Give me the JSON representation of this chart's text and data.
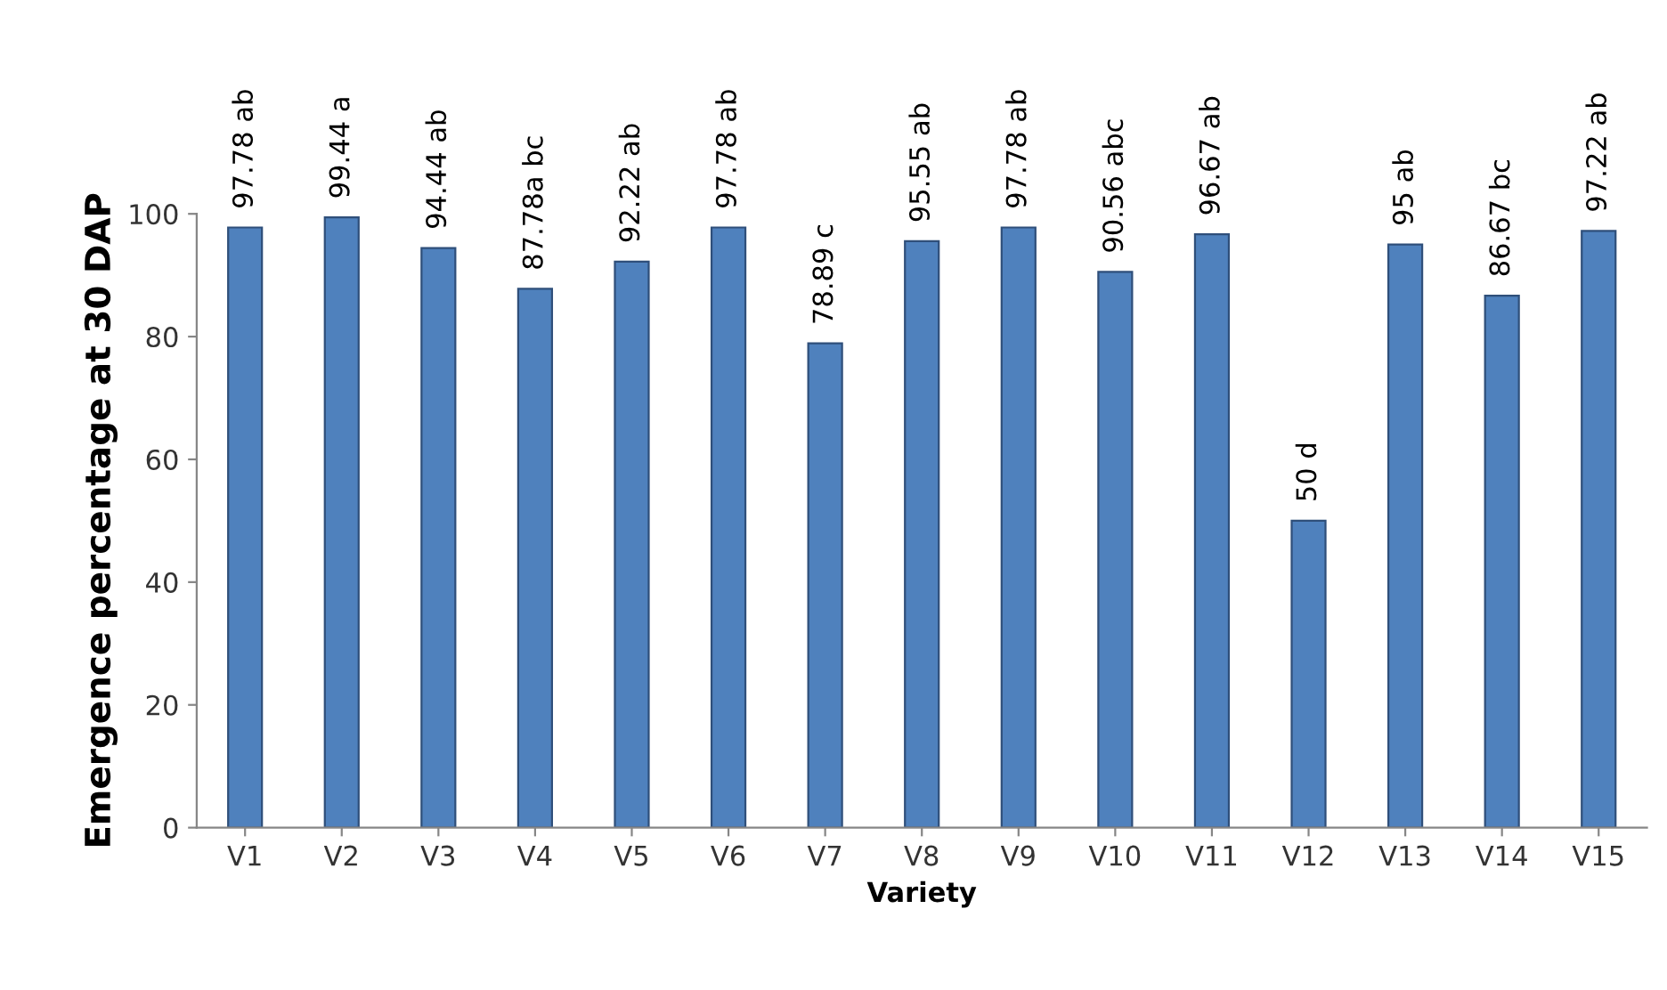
{
  "chart_data": {
    "type": "bar",
    "xlabel": "Variety",
    "ylabel": "Emergence percentage at 30 DAP",
    "categories": [
      "V1",
      "V2",
      "V3",
      "V4",
      "V5",
      "V6",
      "V7",
      "V8",
      "V9",
      "V10",
      "V11",
      "V12",
      "V13",
      "V14",
      "V15"
    ],
    "values": [
      97.78,
      99.44,
      94.44,
      87.78,
      92.22,
      97.78,
      78.89,
      95.55,
      97.78,
      90.56,
      96.67,
      50,
      95,
      86.67,
      97.22
    ],
    "value_labels": [
      "97.78 ab",
      "99.44 a",
      "94.44 ab",
      "87.78a bc",
      "92.22 ab",
      "97.78 ab",
      "78.89 c",
      "95.55 ab",
      "97.78 ab",
      "90.56 abc",
      "96.67 ab",
      "50 d",
      "95 ab",
      "86.67 bc",
      "97.22 ab"
    ],
    "color": "#4f81bd",
    "ylim": [
      0,
      100
    ],
    "yticks": [
      0,
      20,
      40,
      60,
      80,
      100
    ],
    "grid": false,
    "legend": false
  }
}
